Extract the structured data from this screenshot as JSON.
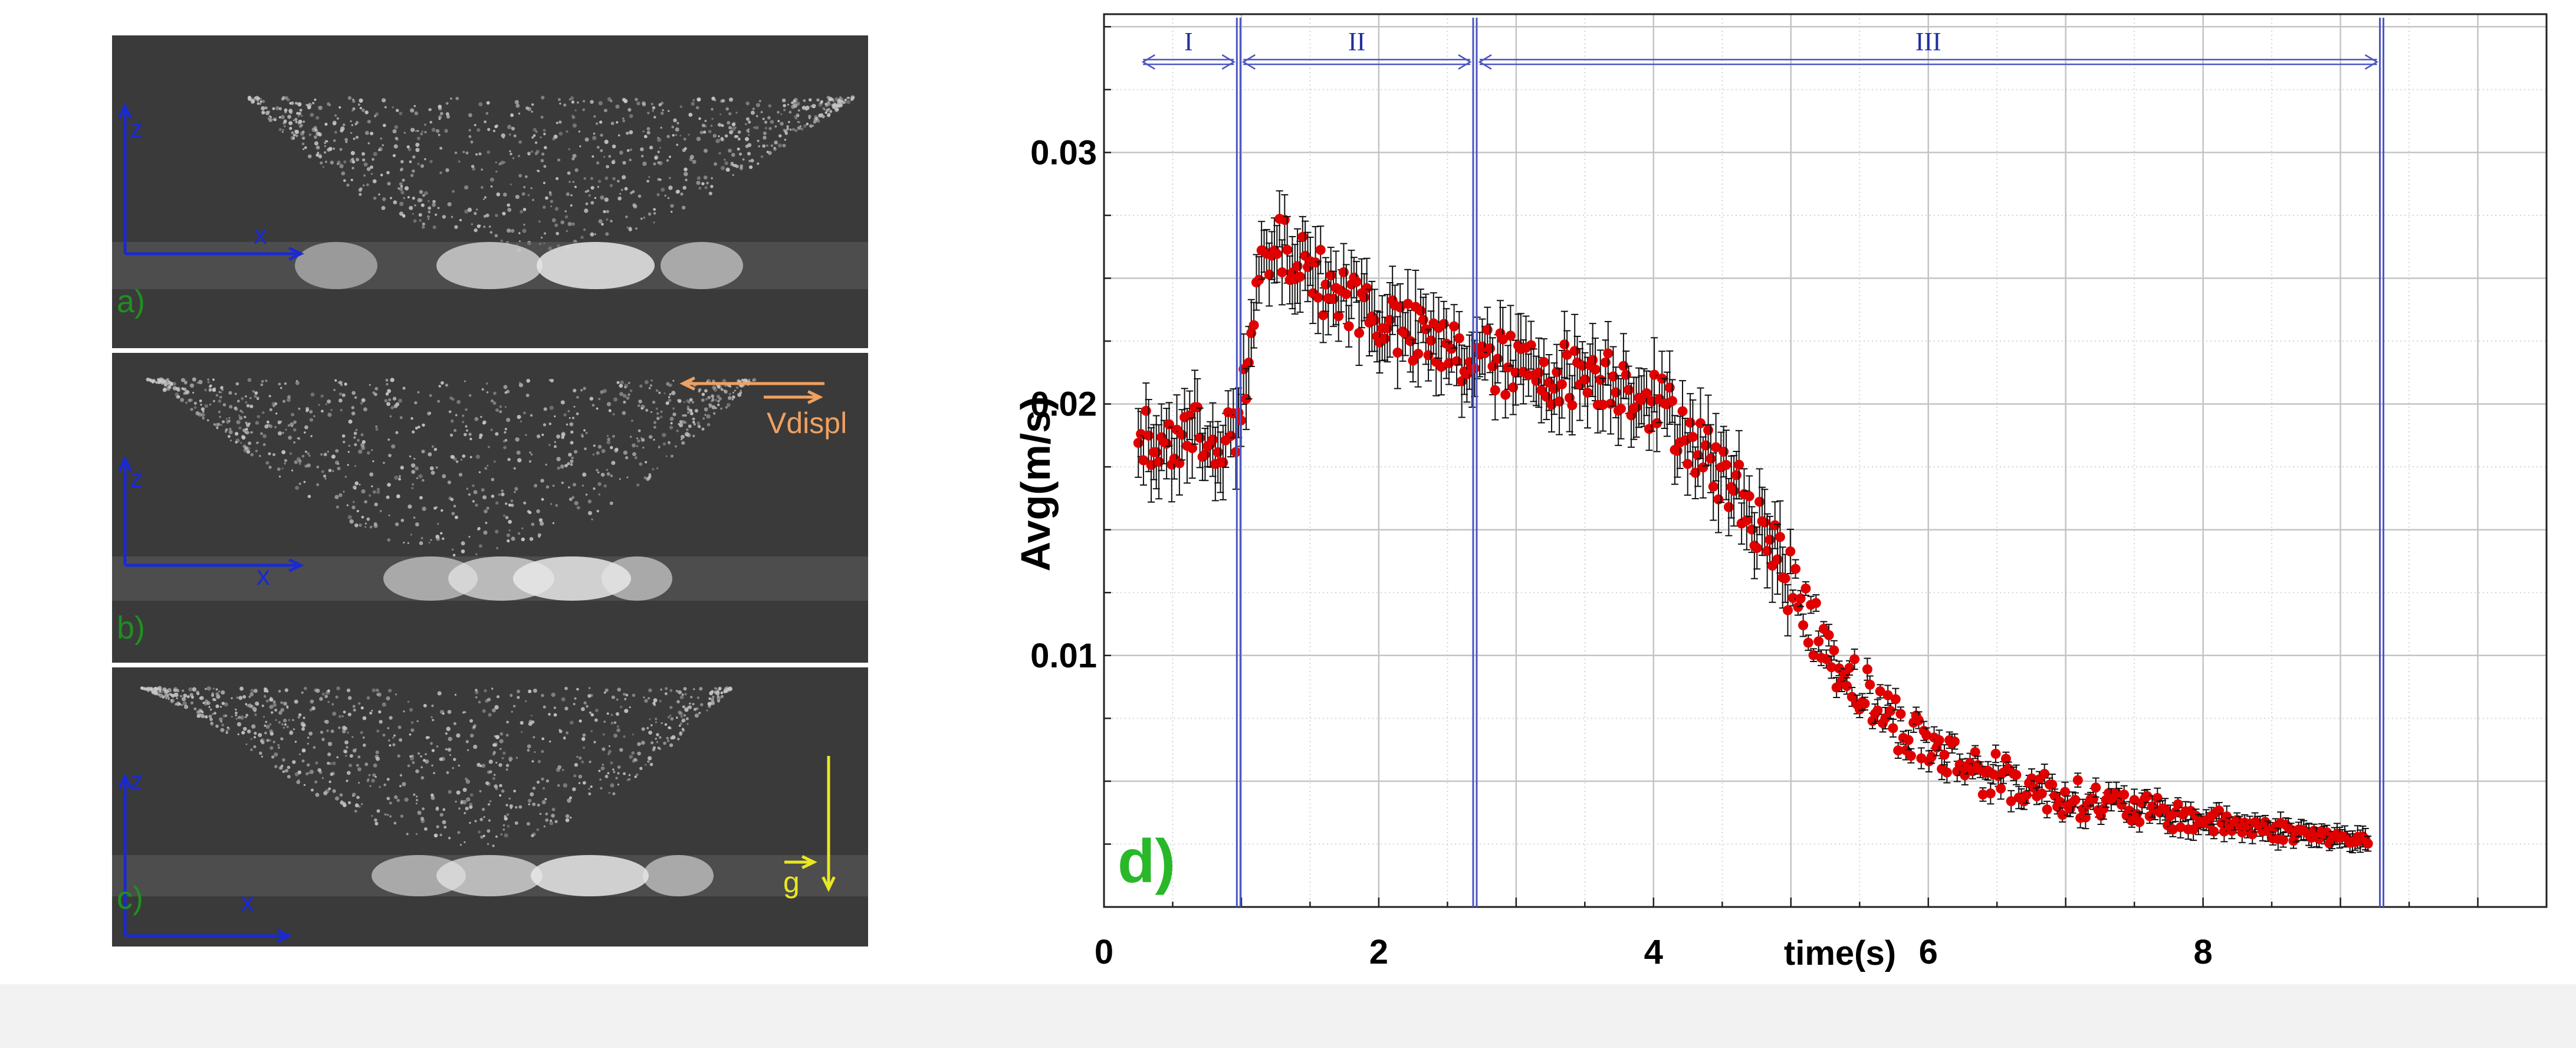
{
  "panels": [
    {
      "id": "a",
      "label": "a)",
      "z_label": "z",
      "x_label": "x"
    },
    {
      "id": "b",
      "label": "b)",
      "z_label": "z",
      "x_label": "x",
      "arrow_label": "Vdispl",
      "arrow_color": "#f0a060"
    },
    {
      "id": "c",
      "label": "c)",
      "z_label": "z",
      "x_label": "x",
      "arrow_label": "g",
      "arrow_color": "#e8e820"
    }
  ],
  "colors": {
    "axes_blue": "#1a2ad0",
    "label_green": "#1f8f1f",
    "data_red": "#e00000",
    "phase_line": "#4a55c0",
    "panel_label_green": "#28b828"
  },
  "chart_data": {
    "type": "scatter",
    "panel_label": "d)",
    "xlabel": "time(s)",
    "ylabel": "Avg(m/s)",
    "xlim": [
      0,
      10.5
    ],
    "ylim": [
      0,
      0.0355
    ],
    "xticks": [
      0,
      2,
      4,
      6,
      8
    ],
    "yticks": [
      0.01,
      0.02,
      0.03
    ],
    "ytick_labels": [
      "0.01",
      "0.02",
      "0.03"
    ],
    "grid": true,
    "error_bars": true,
    "phase_boundaries": [
      0.98,
      2.7,
      9.3
    ],
    "phases": [
      {
        "label": "I",
        "start": 0.25,
        "end": 0.98
      },
      {
        "label": "II",
        "start": 0.98,
        "end": 2.7
      },
      {
        "label": "III",
        "start": 2.7,
        "end": 9.3
      }
    ],
    "trend": {
      "x": [
        0.25,
        0.5,
        0.8,
        0.98,
        1.05,
        1.15,
        1.3,
        1.45,
        1.6,
        1.8,
        2.0,
        2.2,
        2.45,
        2.65,
        2.8,
        3.0,
        3.3,
        3.6,
        3.9,
        4.2,
        4.5,
        4.8,
        5.0,
        5.2,
        5.4,
        5.6,
        5.8,
        6.0,
        6.3,
        6.6,
        7.0,
        7.4,
        7.8,
        8.2,
        8.6,
        8.9,
        9.2
      ],
      "y": [
        0.0185,
        0.0185,
        0.0188,
        0.0187,
        0.0215,
        0.0255,
        0.0262,
        0.0255,
        0.0248,
        0.0242,
        0.0235,
        0.0228,
        0.0222,
        0.0218,
        0.0218,
        0.0214,
        0.0212,
        0.0212,
        0.0206,
        0.0192,
        0.0172,
        0.0152,
        0.0128,
        0.0108,
        0.0094,
        0.0082,
        0.0072,
        0.0064,
        0.0056,
        0.005,
        0.0044,
        0.004,
        0.0036,
        0.0033,
        0.003,
        0.0028,
        0.0026
      ]
    },
    "n_points": 480,
    "noise": 0.0013
  }
}
